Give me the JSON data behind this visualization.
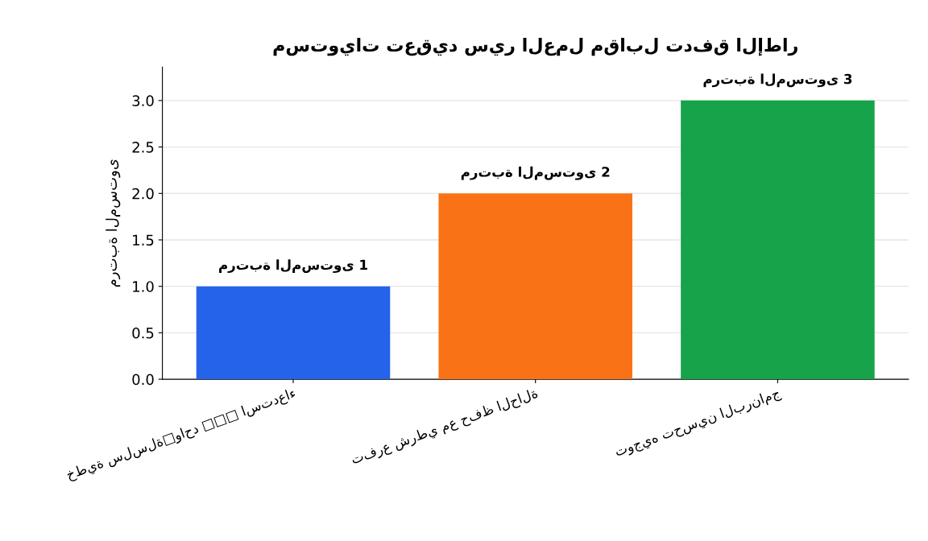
{
  "chart_data": {
    "type": "bar",
    "title": "مستويات تعقيد سير العمل مقابل تدفق الإطار",
    "ylabel": "مرتبة المستوى",
    "categories": [
      "خطية سلسلة□واحد □□□ استدعاء",
      "تفرع شرطي مع حفظ الحالة",
      "توجيه تحسين البرنامج"
    ],
    "values": [
      1,
      2,
      3
    ],
    "colors": [
      "#2563eb",
      "#f97316",
      "#16a34a"
    ],
    "value_labels": [
      "مرتبة المستوى 1",
      "مرتبة المستوى 2",
      "مرتبة المستوى 3"
    ],
    "ylim": [
      0,
      3.36
    ],
    "yticks": [
      {
        "value": 0,
        "label": "0.0"
      },
      0.5,
      {
        "value": 1,
        "label": "1.0"
      },
      1.5,
      {
        "value": 2,
        "label": "2.0"
      },
      2.5,
      {
        "value": 3,
        "label": "3.0"
      }
    ],
    "grid": "y"
  }
}
